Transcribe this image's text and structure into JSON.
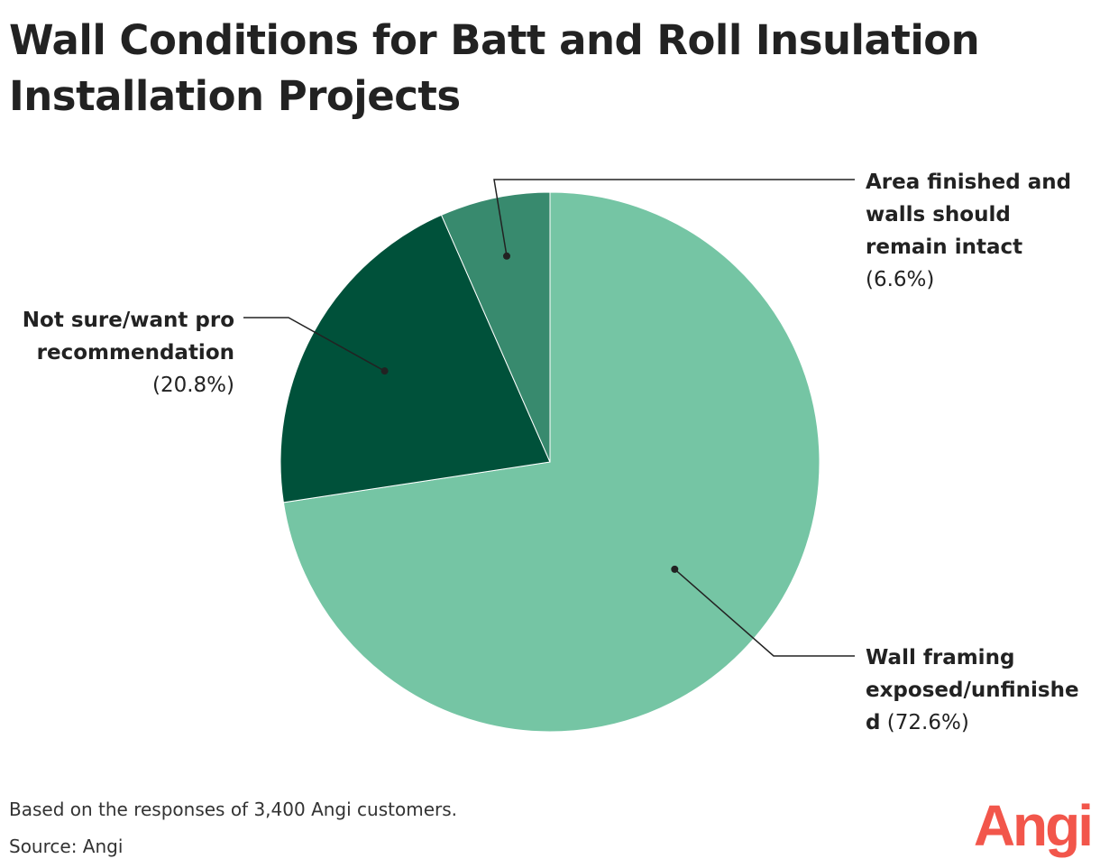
{
  "chart_data": {
    "type": "pie",
    "title": "Wall Conditions for Batt and Roll Insulation Installation Projects",
    "slices": [
      {
        "label_lines": [
          "Wall framing",
          "exposed/unfinishe",
          "d"
        ],
        "label": "Wall framing exposed/unfinished",
        "value": 72.6,
        "value_label": "(72.6%)",
        "color": "#75c5a4"
      },
      {
        "label_lines": [
          "Not sure/want pro",
          "recommendation"
        ],
        "label": "Not sure/want pro recommendation",
        "value": 20.8,
        "value_label": "(20.8%)",
        "color": "#00513a"
      },
      {
        "label_lines": [
          "Area finished and",
          "walls should",
          "remain intact"
        ],
        "label": "Area finished and walls should remain intact",
        "value": 6.6,
        "value_label": "(6.6%)",
        "color": "#388a6e"
      }
    ],
    "legend": "none"
  },
  "footnote": "Based on the responses of 3,400 Angi customers.",
  "source": "Source: Angi",
  "logo": {
    "text": "Angi",
    "color": "#f2564b"
  },
  "line_color": "#222222"
}
